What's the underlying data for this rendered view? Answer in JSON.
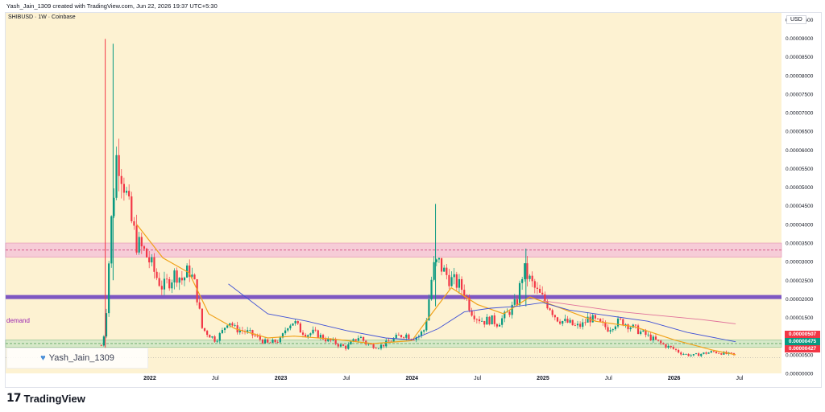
{
  "header": {
    "attribution": "Yash_Jain_1309 created with TradingView.com, Jun 22, 2026 19:37 UTC+5:30"
  },
  "symbol_info": "SHIBUSD · 1W · Coinbase",
  "currency_label": "USD",
  "watermark": {
    "icon": "heart-icon",
    "text": "Yash_Jain_1309"
  },
  "brand": {
    "logo_glyph": "17",
    "name": "TradingView"
  },
  "annotations": {
    "demand_label": "demand"
  },
  "badges": [
    {
      "value": "0.00000507",
      "color": "#f23645"
    },
    {
      "value": "0.00000475",
      "color": "#089981"
    },
    {
      "value": "0.00000427",
      "color": "#f23645"
    }
  ],
  "colors": {
    "background": "#fdf2d2",
    "up": "#089981",
    "down": "#f23645",
    "supply_zone": "#f4c6d8",
    "demand_zone": "#cfe6c7",
    "support_line": "#7e57c2",
    "ema_orange": "#f0a21a",
    "ma_blue": "#3f51d6",
    "ma_pink": "#e0709a"
  },
  "chart_data": {
    "type": "candlestick",
    "timeframe": "1W",
    "y_axis_ticks": [
      "0.00009500",
      "0.00009000",
      "0.00008500",
      "0.00008000",
      "0.00007500",
      "0.00007000",
      "0.00006500",
      "0.00006000",
      "0.00005500",
      "0.00005000",
      "0.00004500",
      "0.00004000",
      "0.00003500",
      "0.00003000",
      "0.00002500",
      "0.00002000",
      "0.00001500",
      "0.00001000",
      "0.00000500",
      "0.00000000"
    ],
    "x_axis_ticks": [
      "2022",
      "Jul",
      "2023",
      "Jul",
      "2024",
      "Jul",
      "2025",
      "Jul",
      "2026",
      "Jul"
    ],
    "ylim": [
      0,
      9.68e-05
    ],
    "xlim": [
      2020.9,
      2026.82
    ],
    "x_tick_positions": [
      2022.0,
      2022.5,
      2023.0,
      2023.5,
      2024.0,
      2024.5,
      2025.0,
      2025.5,
      2026.0,
      2026.5
    ],
    "zones": [
      {
        "name": "supply zone",
        "y0": 3.12e-05,
        "y1": 3.5e-05
      },
      {
        "name": "demand zone",
        "y0": 7e-06,
        "y1": 9e-06
      }
    ],
    "horizontal_lines": [
      {
        "name": "support/resistance",
        "y": 2.05e-05
      }
    ],
    "close_path": [
      [
        2021.63,
        7.5e-06
      ],
      [
        2021.66,
        1.2e-05
      ],
      [
        2021.7,
        3.8e-05
      ],
      [
        2021.75,
        6e-05
      ],
      [
        2021.8,
        5.2e-05
      ],
      [
        2021.85,
        4.2e-05
      ],
      [
        2021.9,
        3.5e-05
      ],
      [
        2021.95,
        3.3e-05
      ],
      [
        2022.0,
        3e-05
      ],
      [
        2022.05,
        2.6e-05
      ],
      [
        2022.1,
        2.3e-05
      ],
      [
        2022.15,
        2.5e-05
      ],
      [
        2022.2,
        2.7e-05
      ],
      [
        2022.25,
        2.5e-05
      ],
      [
        2022.3,
        2.8e-05
      ],
      [
        2022.35,
        2.3e-05
      ],
      [
        2022.4,
        1.2e-05
      ],
      [
        2022.45,
        1.05e-05
      ],
      [
        2022.5,
        9e-06
      ],
      [
        2022.55,
        1.1e-05
      ],
      [
        2022.6,
        1.45e-05
      ],
      [
        2022.65,
        1.2e-05
      ],
      [
        2022.7,
        1.15e-05
      ],
      [
        2022.75,
        1.1e-05
      ],
      [
        2022.8,
        1e-05
      ],
      [
        2022.85,
        9e-06
      ],
      [
        2022.9,
        8e-06
      ],
      [
        2022.95,
        8.5e-06
      ],
      [
        2023.0,
        9e-06
      ],
      [
        2023.05,
        1.3e-05
      ],
      [
        2023.1,
        1.4e-05
      ],
      [
        2023.15,
        1.15e-05
      ],
      [
        2023.2,
        1.05e-05
      ],
      [
        2023.25,
        1.1e-05
      ],
      [
        2023.3,
        1e-05
      ],
      [
        2023.35,
        9e-06
      ],
      [
        2023.4,
        8.5e-06
      ],
      [
        2023.45,
        7.5e-06
      ],
      [
        2023.5,
        7e-06
      ],
      [
        2023.55,
        8.5e-06
      ],
      [
        2023.6,
        1e-05
      ],
      [
        2023.65,
        8e-06
      ],
      [
        2023.7,
        7.5e-06
      ],
      [
        2023.75,
        7.2e-06
      ],
      [
        2023.8,
        8e-06
      ],
      [
        2023.85,
        9e-06
      ],
      [
        2023.9,
        1e-05
      ],
      [
        2023.95,
        1.05e-05
      ],
      [
        2024.0,
        9.5e-06
      ],
      [
        2024.05,
        1e-05
      ],
      [
        2024.1,
        1.2e-05
      ],
      [
        2024.16,
        2.8e-05
      ],
      [
        2024.2,
        3e-05
      ],
      [
        2024.25,
        2.7e-05
      ],
      [
        2024.3,
        2.5e-05
      ],
      [
        2024.35,
        2.4e-05
      ],
      [
        2024.4,
        2.2e-05
      ],
      [
        2024.45,
        1.7e-05
      ],
      [
        2024.5,
        1.5e-05
      ],
      [
        2024.55,
        1.4e-05
      ],
      [
        2024.6,
        1.45e-05
      ],
      [
        2024.65,
        1.35e-05
      ],
      [
        2024.7,
        1.5e-05
      ],
      [
        2024.75,
        1.7e-05
      ],
      [
        2024.8,
        1.9e-05
      ],
      [
        2024.85,
        2.8e-05
      ],
      [
        2024.9,
        2.5e-05
      ],
      [
        2024.95,
        2.2e-05
      ],
      [
        2025.0,
        2e-05
      ],
      [
        2025.05,
        1.8e-05
      ],
      [
        2025.1,
        1.5e-05
      ],
      [
        2025.15,
        1.4e-05
      ],
      [
        2025.2,
        1.35e-05
      ],
      [
        2025.25,
        1.25e-05
      ],
      [
        2025.3,
        1.3e-05
      ],
      [
        2025.35,
        1.5e-05
      ],
      [
        2025.4,
        1.4e-05
      ],
      [
        2025.45,
        1.3e-05
      ],
      [
        2025.5,
        1.2e-05
      ],
      [
        2025.55,
        1.35e-05
      ],
      [
        2025.6,
        1.4e-05
      ],
      [
        2025.65,
        1.3e-05
      ],
      [
        2025.7,
        1.2e-05
      ],
      [
        2025.75,
        1.1e-05
      ],
      [
        2025.8,
        1e-05
      ],
      [
        2025.85,
        9e-06
      ],
      [
        2025.9,
        8e-06
      ],
      [
        2025.95,
        7.2e-06
      ],
      [
        2026.0,
        6.5e-06
      ],
      [
        2026.05,
        5.5e-06
      ],
      [
        2026.1,
        5e-06
      ],
      [
        2026.15,
        4.8e-06
      ],
      [
        2026.2,
        5.2e-06
      ],
      [
        2026.25,
        5.5e-06
      ],
      [
        2026.3,
        5.8e-06
      ],
      [
        2026.35,
        5.6e-06
      ],
      [
        2026.4,
        5.2e-06
      ],
      [
        2026.45,
        5e-06
      ],
      [
        2026.47,
        4.7e-06
      ]
    ],
    "spikes": [
      {
        "x": 2021.66,
        "high": 8.98e-05,
        "low": 6.5e-06
      },
      {
        "x": 2021.72,
        "high": 8.85e-05,
        "low": 2.5e-05
      },
      {
        "x": 2024.18,
        "high": 4.55e-05,
        "low": 1.8e-05
      },
      {
        "x": 2024.87,
        "high": 3.35e-05,
        "low": 1.8e-05
      }
    ],
    "series": [
      {
        "kind": "ema",
        "points": [
          [
            2021.9,
            4e-05
          ],
          [
            2022.1,
            3.1e-05
          ],
          [
            2022.3,
            2.7e-05
          ],
          [
            2022.45,
            1.6e-05
          ],
          [
            2022.65,
            1.2e-05
          ],
          [
            2022.9,
            9.5e-06
          ],
          [
            2023.1,
            1e-05
          ],
          [
            2023.4,
            9.2e-06
          ],
          [
            2023.7,
            8e-06
          ],
          [
            2024.0,
            8.8e-06
          ],
          [
            2024.15,
            1.6e-05
          ],
          [
            2024.3,
            2.3e-05
          ],
          [
            2024.5,
            1.85e-05
          ],
          [
            2024.7,
            1.6e-05
          ],
          [
            2024.9,
            2.05e-05
          ],
          [
            2025.1,
            1.8e-05
          ],
          [
            2025.4,
            1.4e-05
          ],
          [
            2025.7,
            1.25e-05
          ],
          [
            2026.0,
            9e-06
          ],
          [
            2026.3,
            6.2e-06
          ],
          [
            2026.47,
            5e-06
          ]
        ]
      },
      {
        "kind": "ma",
        "points": [
          [
            2022.6,
            2.4e-05
          ],
          [
            2022.9,
            1.6e-05
          ],
          [
            2023.2,
            1.4e-05
          ],
          [
            2023.5,
            1.15e-05
          ],
          [
            2023.8,
            9.5e-06
          ],
          [
            2024.0,
            9e-06
          ],
          [
            2024.2,
            1.2e-05
          ],
          [
            2024.4,
            1.65e-05
          ],
          [
            2024.6,
            1.75e-05
          ],
          [
            2024.8,
            1.8e-05
          ],
          [
            2025.0,
            1.9e-05
          ],
          [
            2025.2,
            1.7e-05
          ],
          [
            2025.5,
            1.55e-05
          ],
          [
            2025.8,
            1.4e-05
          ],
          [
            2026.1,
            1.1e-05
          ],
          [
            2026.47,
            8.5e-06
          ]
        ]
      },
      {
        "kind": "ma",
        "points": [
          [
            2025.0,
            1.95e-05
          ],
          [
            2025.3,
            1.8e-05
          ],
          [
            2025.6,
            1.65e-05
          ],
          [
            2025.9,
            1.55e-05
          ],
          [
            2026.2,
            1.45e-05
          ],
          [
            2026.47,
            1.33e-05
          ]
        ]
      }
    ]
  }
}
